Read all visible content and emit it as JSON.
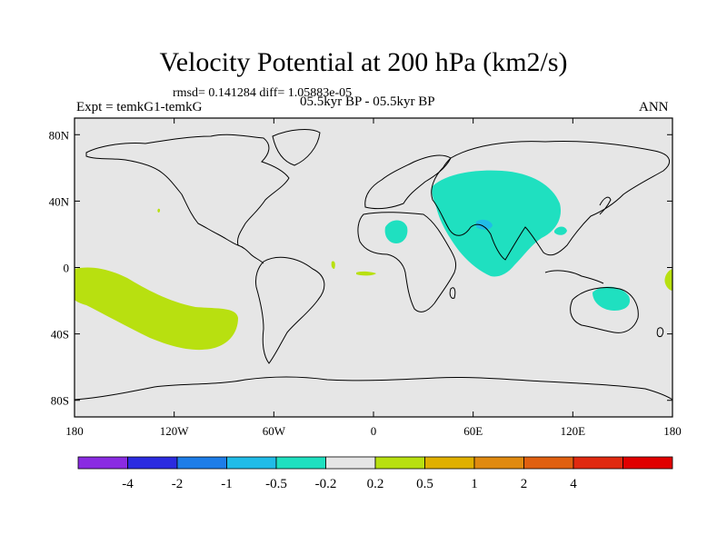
{
  "header": {
    "title": "Velocity Potential at 200 hPa (km2/s)",
    "stats": "rmsd= 0.141284 diff= 1.05883e-05",
    "experiment": "Expt = temkG1-temkG",
    "period": "05.5kyr BP - 05.5kyr BP",
    "season": "ANN"
  },
  "map": {
    "lon_ticks": [
      {
        "lon": -180,
        "label": "180"
      },
      {
        "lon": -120,
        "label": "120W"
      },
      {
        "lon": -60,
        "label": "60W"
      },
      {
        "lon": 0,
        "label": "0"
      },
      {
        "lon": 60,
        "label": "60E"
      },
      {
        "lon": 120,
        "label": "120E"
      },
      {
        "lon": 180,
        "label": "180"
      }
    ],
    "lat_ticks": [
      {
        "lat": 80,
        "label": "80N"
      },
      {
        "lat": 40,
        "label": "40N"
      },
      {
        "lat": 0,
        "label": "0"
      },
      {
        "lat": -40,
        "label": "40S"
      },
      {
        "lat": -80,
        "label": "80S"
      }
    ],
    "background_color": "#e6e6e6"
  },
  "colorbar": {
    "colors": [
      "#8a2be2",
      "#2b2be0",
      "#1e7de8",
      "#20bce8",
      "#1fe0c0",
      "#e6e6e6",
      "#b8e010",
      "#e0b000",
      "#e08a10",
      "#e06010",
      "#e02a10",
      "#e00000"
    ],
    "labels": [
      "-4",
      "-2",
      "-1",
      "-0.5",
      "-0.2",
      "0.2",
      "0.5",
      "1",
      "2",
      "4"
    ]
  }
}
